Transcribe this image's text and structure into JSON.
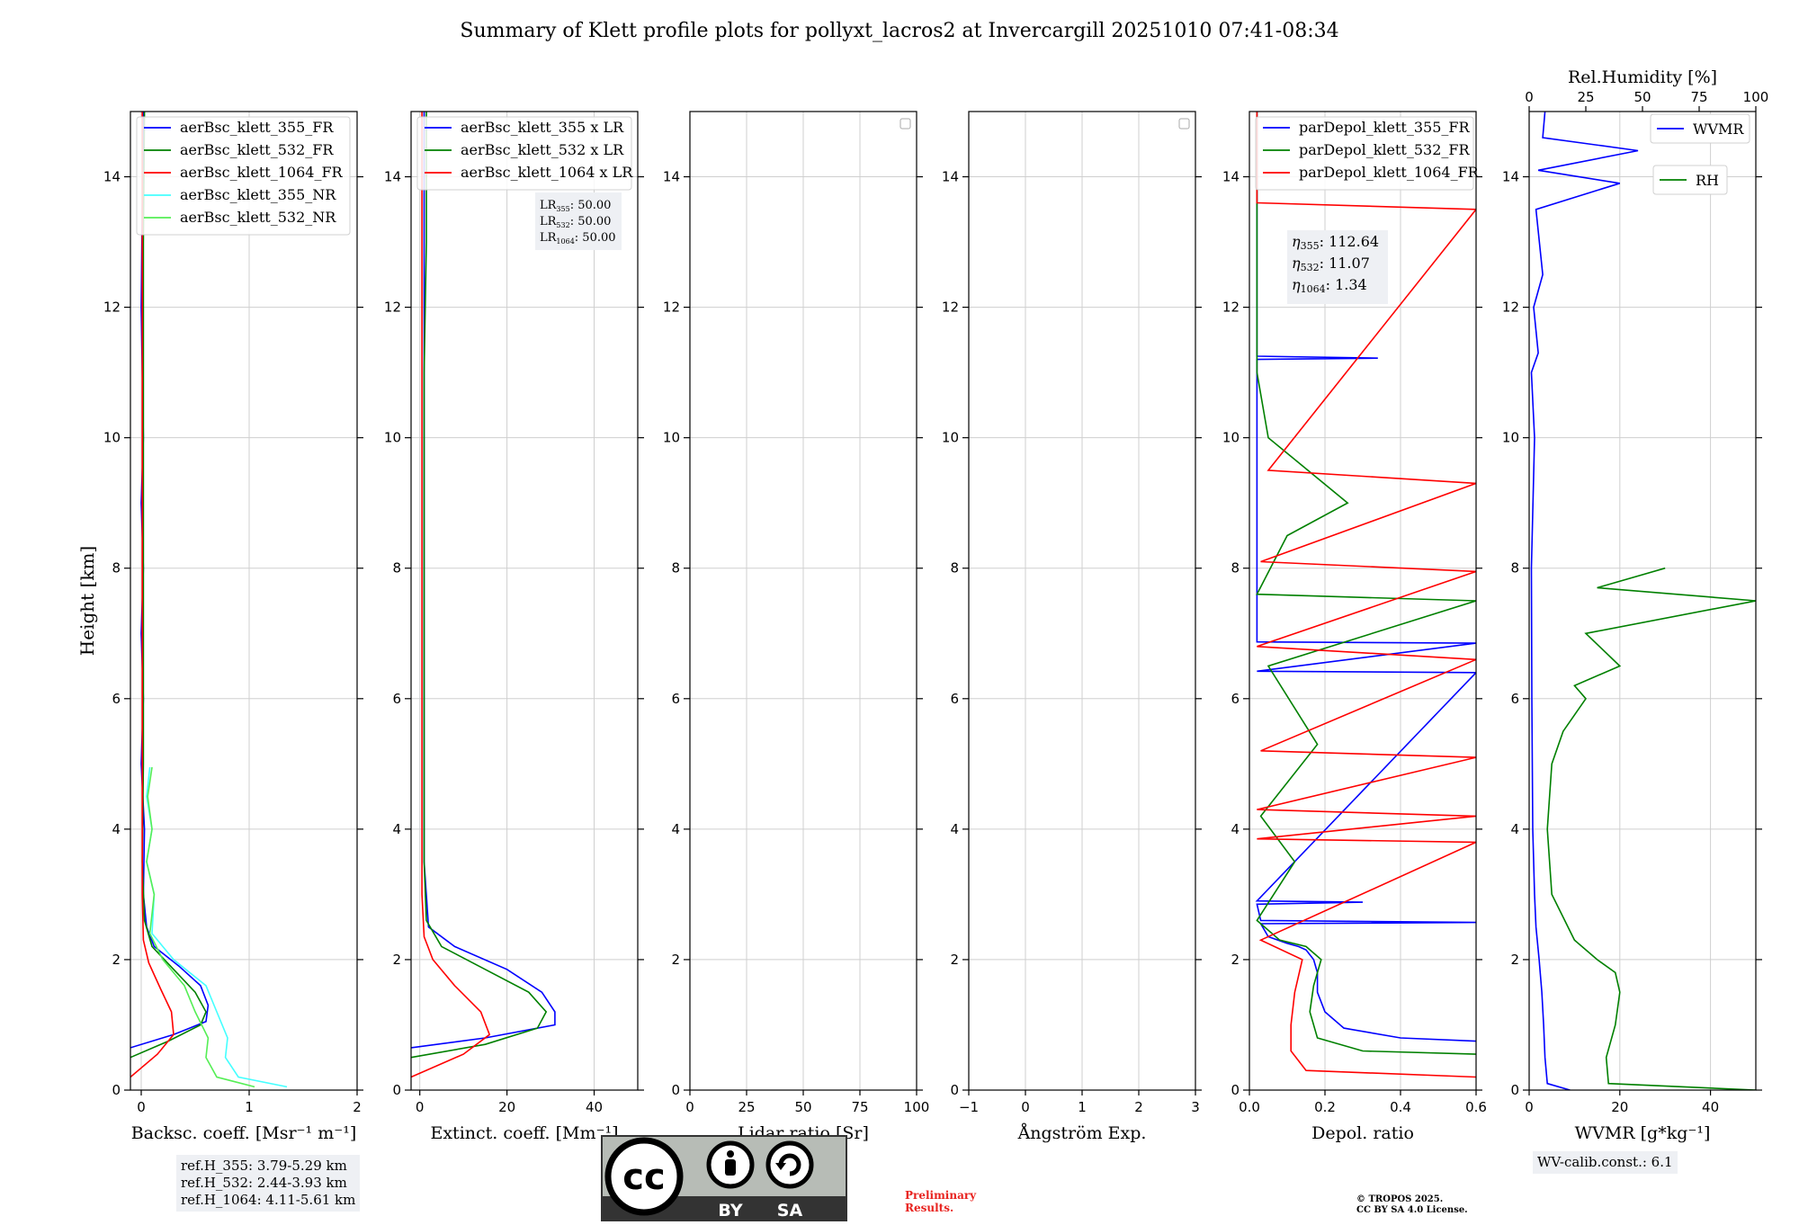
{
  "title": "Summary of Klett profile plots for pollyxt_lacros2 at Invercargill 20251010 07:41-08:34",
  "ylabel": "Height [km]",
  "colors": {
    "blue": "#0000ff",
    "green": "#008000",
    "red": "#ff0000",
    "cyan": "#44ffff",
    "lightgreen": "#55ee55"
  },
  "chart_data": [
    {
      "type": "line",
      "id": "backscatter",
      "xlabel": "Backsc. coeff. [Msr⁻¹ m⁻¹]",
      "xlim": [
        -0.1,
        2
      ],
      "ylim": [
        0,
        15
      ],
      "xticks": [
        0,
        1,
        2
      ],
      "xtick_labels": [
        "0",
        "1",
        "2"
      ],
      "yticks": [
        0,
        2,
        4,
        6,
        8,
        10,
        12,
        14
      ],
      "ytick_labels": [
        "0",
        "2",
        "4",
        "6",
        "8",
        "10",
        "12",
        "14"
      ],
      "legend": [
        "aerBsc_klett_355_FR",
        "aerBsc_klett_532_FR",
        "aerBsc_klett_1064_FR",
        "aerBsc_klett_355_NR",
        "aerBsc_klett_532_NR"
      ],
      "series": [
        {
          "name": "aerBsc_klett_355_FR",
          "color": "blue",
          "x": [
            -0.1,
            0.3,
            0.6,
            0.62,
            0.55,
            0.35,
            0.12,
            0.05,
            0.02,
            0.03,
            0.0,
            0.02,
            0.0,
            0.02,
            0.0,
            0.02,
            0.0,
            0.02
          ],
          "y": [
            0.65,
            0.85,
            1.05,
            1.3,
            1.6,
            1.9,
            2.2,
            2.5,
            3.0,
            4.0,
            5.0,
            6.0,
            7.0,
            8.0,
            9.0,
            10.0,
            12.0,
            15.0
          ]
        },
        {
          "name": "aerBsc_klett_532_FR",
          "color": "green",
          "x": [
            -0.1,
            0.25,
            0.55,
            0.6,
            0.5,
            0.3,
            0.1,
            0.03,
            0.01,
            0.02,
            0.02,
            0.02,
            0.02,
            0.02,
            0.03
          ],
          "y": [
            0.5,
            0.75,
            1.0,
            1.2,
            1.5,
            1.85,
            2.2,
            2.6,
            3.5,
            5.0,
            7.0,
            9.0,
            11.0,
            13.0,
            15.0
          ]
        },
        {
          "name": "aerBsc_klett_1064_FR",
          "color": "red",
          "x": [
            -0.1,
            0.15,
            0.3,
            0.28,
            0.18,
            0.07,
            0.02,
            0.01,
            0.01,
            0.01,
            0.01,
            0.01,
            0.01
          ],
          "y": [
            0.2,
            0.55,
            0.85,
            1.2,
            1.55,
            1.95,
            2.3,
            3.0,
            5.0,
            7.0,
            9.0,
            12.0,
            15.0
          ]
        },
        {
          "name": "aerBsc_klett_355_NR",
          "color": "cyan",
          "x": [
            1.35,
            0.9,
            0.78,
            0.8,
            0.7,
            0.6,
            0.3,
            0.1,
            0.12,
            0.05,
            0.1,
            0.05,
            0.08
          ],
          "y": [
            0.05,
            0.2,
            0.5,
            0.8,
            1.2,
            1.6,
            2.0,
            2.4,
            3.0,
            3.5,
            4.0,
            4.5,
            4.95
          ]
        },
        {
          "name": "aerBsc_klett_532_NR",
          "color": "lightgreen",
          "x": [
            1.05,
            0.7,
            0.6,
            0.62,
            0.5,
            0.4,
            0.2,
            0.08,
            0.12,
            0.05,
            0.1,
            0.06,
            0.1
          ],
          "y": [
            0.05,
            0.2,
            0.5,
            0.8,
            1.2,
            1.6,
            2.0,
            2.4,
            3.0,
            3.5,
            4.0,
            4.5,
            4.95
          ]
        }
      ]
    },
    {
      "type": "line",
      "id": "extinction",
      "xlabel": "Extinct. coeff. [Mm⁻¹]",
      "xlim": [
        -2,
        50
      ],
      "ylim": [
        0,
        15
      ],
      "xticks": [
        0,
        20,
        40
      ],
      "xtick_labels": [
        "0",
        "20",
        "40"
      ],
      "yticks": [
        0,
        2,
        4,
        6,
        8,
        10,
        12,
        14
      ],
      "ytick_labels": [
        "0",
        "2",
        "4",
        "6",
        "8",
        "10",
        "12",
        "14"
      ],
      "legend": [
        "aerBsc_klett_355 x LR",
        "aerBsc_klett_532 x LR",
        "aerBsc_klett_1064 x LR"
      ],
      "annotation": [
        {
          "label": "LR",
          "sub": "355",
          "value": ": 50.00"
        },
        {
          "label": "LR",
          "sub": "532",
          "value": ": 50.00"
        },
        {
          "label": "LR",
          "sub": "1064",
          "value": ": 50.00"
        }
      ],
      "series": [
        {
          "name": "aerBsc_klett_355 x LR",
          "color": "blue",
          "x": [
            -2,
            15,
            31,
            31,
            28,
            20,
            8,
            2,
            1,
            1,
            1,
            1,
            1,
            1,
            1
          ],
          "y": [
            0.65,
            0.8,
            1.0,
            1.2,
            1.5,
            1.85,
            2.2,
            2.5,
            3.5,
            5.0,
            7.0,
            9.0,
            11.0,
            13.0,
            15.0
          ]
        },
        {
          "name": "aerBsc_klett_532 x LR",
          "color": "green",
          "x": [
            -2,
            15,
            27,
            29,
            25,
            15,
            5,
            1.5,
            1,
            1,
            1,
            1,
            1,
            1.5,
            1.5
          ],
          "y": [
            0.5,
            0.7,
            0.95,
            1.2,
            1.5,
            1.85,
            2.2,
            2.6,
            3.5,
            5.0,
            7.0,
            9.0,
            11.0,
            13.0,
            15.0
          ]
        },
        {
          "name": "aerBsc_klett_1064 x LR",
          "color": "red",
          "x": [
            -2,
            10,
            16,
            14,
            8,
            3,
            1,
            0.5,
            0.5,
            0.5,
            0.5,
            0.5,
            0.5
          ],
          "y": [
            0.2,
            0.55,
            0.85,
            1.2,
            1.6,
            2.0,
            2.35,
            3.0,
            5.0,
            7.0,
            9.0,
            12.0,
            15.0
          ]
        }
      ]
    },
    {
      "type": "line",
      "id": "lidar-ratio",
      "xlabel": "Lidar ratio [Sr]",
      "xlim": [
        0,
        100
      ],
      "ylim": [
        0,
        15
      ],
      "xticks": [
        0,
        25,
        50,
        75,
        100
      ],
      "xtick_labels": [
        "0",
        "25",
        "50",
        "75",
        "100"
      ],
      "yticks": [
        0,
        2,
        4,
        6,
        8,
        10,
        12,
        14
      ],
      "ytick_labels": [
        "0",
        "2",
        "4",
        "6",
        "8",
        "10",
        "12",
        "14"
      ],
      "series": []
    },
    {
      "type": "line",
      "id": "angstrom",
      "xlabel": "Ångström Exp.",
      "xlim": [
        -1,
        3
      ],
      "ylim": [
        0,
        15
      ],
      "xticks": [
        -1,
        0,
        1,
        2,
        3
      ],
      "xtick_labels": [
        "−1",
        "0",
        "1",
        "2",
        "3"
      ],
      "yticks": [
        0,
        2,
        4,
        6,
        8,
        10,
        12,
        14
      ],
      "ytick_labels": [
        "0",
        "2",
        "4",
        "6",
        "8",
        "10",
        "12",
        "14"
      ],
      "series": []
    },
    {
      "type": "line",
      "id": "depol",
      "xlabel": "Depol. ratio",
      "xlim": [
        0,
        0.6
      ],
      "ylim": [
        0,
        15
      ],
      "xticks": [
        0,
        0.2,
        0.4,
        0.6
      ],
      "xtick_labels": [
        "0.0",
        "0.2",
        "0.4",
        "0.6"
      ],
      "yticks": [
        0,
        2,
        4,
        6,
        8,
        10,
        12,
        14
      ],
      "ytick_labels": [
        "0",
        "2",
        "4",
        "6",
        "8",
        "10",
        "12",
        "14"
      ],
      "legend": [
        "parDepol_klett_355_FR",
        "parDepol_klett_532_FR",
        "parDepol_klett_1064_FR"
      ],
      "annotation": [
        {
          "label": "η",
          "sub": "355",
          "value": ": 112.64"
        },
        {
          "label": "η",
          "sub": "532",
          "value": ": 11.07"
        },
        {
          "label": "η",
          "sub": "1064",
          "value": ": 1.34"
        }
      ],
      "series": [
        {
          "name": "parDepol_klett_355_FR",
          "color": "blue",
          "x": [
            0.6,
            0.4,
            0.25,
            0.2,
            0.18,
            0.18,
            0.17,
            0.15,
            0.13,
            0.1,
            0.05,
            0.03,
            0.6,
            0.03,
            0.02,
            0.3,
            0.02,
            0.6,
            0.02,
            0.6,
            0.02,
            0.02,
            0.34,
            0.02,
            0.02
          ],
          "y": [
            0.75,
            0.8,
            0.95,
            1.2,
            1.5,
            1.8,
            2.0,
            2.15,
            2.2,
            2.25,
            2.35,
            2.55,
            2.57,
            2.6,
            2.85,
            2.88,
            2.9,
            6.4,
            6.42,
            6.85,
            6.87,
            11.2,
            11.22,
            11.25,
            15.0
          ]
        },
        {
          "name": "parDepol_klett_532_FR",
          "color": "green",
          "x": [
            0.6,
            0.3,
            0.18,
            0.16,
            0.17,
            0.19,
            0.15,
            0.08,
            0.02,
            0.12,
            0.03,
            0.18,
            0.05,
            0.6,
            0.02,
            0.1,
            0.26,
            0.05,
            0.02,
            0.02
          ],
          "y": [
            0.55,
            0.6,
            0.8,
            1.2,
            1.6,
            2.0,
            2.2,
            2.3,
            2.6,
            3.5,
            4.2,
            5.3,
            6.5,
            7.5,
            7.6,
            8.5,
            9.0,
            10.0,
            11.0,
            15.0
          ]
        },
        {
          "name": "parDepol_klett_1064_FR",
          "color": "red",
          "x": [
            0.6,
            0.15,
            0.11,
            0.11,
            0.12,
            0.14,
            0.03,
            0.6,
            0.02,
            0.6,
            0.02,
            0.6,
            0.03,
            0.6,
            0.02,
            0.6,
            0.03,
            0.6,
            0.05,
            0.6,
            0.02,
            0.02
          ],
          "y": [
            0.2,
            0.3,
            0.6,
            1.0,
            1.5,
            2.0,
            2.3,
            3.8,
            3.85,
            4.2,
            4.3,
            5.1,
            5.2,
            6.6,
            6.8,
            7.95,
            8.1,
            9.3,
            9.5,
            13.5,
            13.6,
            15.0
          ]
        }
      ]
    },
    {
      "type": "line",
      "id": "wvmr",
      "xlabel": "WVMR [g*kg⁻¹]",
      "xlim": [
        0,
        50
      ],
      "ylim": [
        0,
        15
      ],
      "xticks": [
        0,
        20,
        40
      ],
      "xtick_labels": [
        "0",
        "20",
        "40"
      ],
      "yticks": [
        0,
        2,
        4,
        6,
        8,
        10,
        12,
        14
      ],
      "ytick_labels": [
        "0",
        "2",
        "4",
        "6",
        "8",
        "10",
        "12",
        "14"
      ],
      "top_xlabel": "Rel.Humidity [%]",
      "top_xlim": [
        0,
        100
      ],
      "top_xticks": [
        0,
        25,
        50,
        75,
        100
      ],
      "top_xtick_labels": [
        "0",
        "25",
        "50",
        "75",
        "100"
      ],
      "legend": [
        "WVMR",
        "RH"
      ],
      "series": [
        {
          "name": "WVMR",
          "color": "blue",
          "axis": "bottom",
          "x": [
            9,
            4,
            3.5,
            3.2,
            2.8,
            2.2,
            1.5,
            1.2,
            0.8,
            0.6,
            0.5,
            1.2,
            0.5,
            2.0,
            1.0,
            3.0,
            1.5,
            20,
            2.0,
            24,
            3.0,
            3.5
          ],
          "y": [
            0.0,
            0.1,
            0.5,
            1.0,
            1.5,
            2.0,
            2.5,
            3.0,
            4.0,
            6.0,
            8.0,
            10.0,
            11.0,
            11.3,
            12.0,
            12.5,
            13.5,
            13.9,
            14.1,
            14.4,
            14.6,
            15.0
          ]
        },
        {
          "name": "RH",
          "color": "green",
          "axis": "top",
          "x": [
            100,
            35,
            34,
            38,
            40,
            38,
            30,
            20,
            10,
            8,
            10,
            15,
            25,
            20,
            40,
            25,
            100,
            30,
            60
          ],
          "y": [
            0.0,
            0.1,
            0.5,
            1.0,
            1.5,
            1.8,
            2.0,
            2.3,
            3.0,
            4.0,
            5.0,
            5.5,
            6.0,
            6.2,
            6.5,
            7.0,
            7.5,
            7.7,
            8.0
          ]
        }
      ]
    }
  ],
  "info": {
    "refh": [
      "ref.H_355: 3.79-5.29 km",
      "ref.H_532: 2.44-3.93 km",
      "ref.H_1064: 4.11-5.61 km"
    ],
    "wv_calib": "WV-calib.const.: 6.1"
  },
  "footer": {
    "license_icon_text": "cc",
    "license_by": "BY",
    "license_sa": "SA",
    "preliminary": [
      "Preliminary",
      "Results."
    ],
    "copyright": [
      "© TROPOS 2025.",
      "CC BY SA 4.0 License."
    ]
  }
}
